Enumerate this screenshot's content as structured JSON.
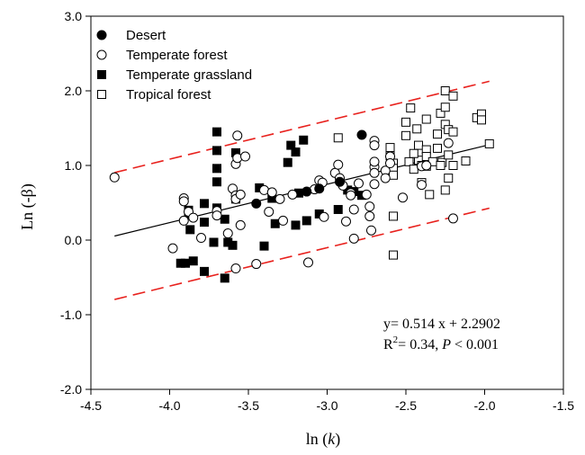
{
  "chart_data": {
    "type": "scatter",
    "xlabel": "ln (k)",
    "ylabel": "Ln (-β)",
    "xlim": [
      -4.5,
      -1.5
    ],
    "ylim": [
      -2.0,
      3.0
    ],
    "x_ticks": [
      "-4.5",
      "-4.0",
      "-3.5",
      "-3.0",
      "-2.5",
      "-2.0",
      "-1.5"
    ],
    "y_ticks": [
      "-2.0",
      "-1.0",
      "0.0",
      "1.0",
      "2.0",
      "3.0"
    ],
    "grid": false,
    "legend_position": "top-left",
    "annotation": {
      "equation": "y= 0.514 x + 2.2902",
      "r2_prefix": "R",
      "r2_sup": "2",
      "r2_value": "= 0.34, ",
      "p_label": "P",
      "p_value": " < 0.001"
    },
    "fit_line": {
      "slope": 0.514,
      "intercept": 2.2902,
      "x_range": [
        -4.35,
        -1.97
      ],
      "color": "#000000"
    },
    "prediction_band": {
      "offset": 0.85,
      "x_range": [
        -4.35,
        -1.97
      ],
      "color": "#e8211d"
    },
    "series": [
      {
        "name": "Desert",
        "marker": "circle-filled",
        "points": [
          [
            -3.45,
            0.49
          ],
          [
            -3.13,
            0.65
          ],
          [
            -2.78,
            1.41
          ],
          [
            -2.92,
            0.78
          ],
          [
            -3.05,
            0.69
          ]
        ]
      },
      {
        "name": "Temperate forest",
        "marker": "circle-open",
        "points": [
          [
            -4.35,
            0.84
          ],
          [
            -3.98,
            -0.11
          ],
          [
            -3.91,
            0.56
          ],
          [
            -3.91,
            0.52
          ],
          [
            -3.91,
            0.26
          ],
          [
            -3.88,
            0.38
          ],
          [
            -3.85,
            0.3
          ],
          [
            -3.8,
            0.03
          ],
          [
            -3.7,
            0.39
          ],
          [
            -3.7,
            0.33
          ],
          [
            -3.63,
            0.09
          ],
          [
            -3.6,
            0.69
          ],
          [
            -3.58,
            0.6
          ],
          [
            -3.58,
            0.55
          ],
          [
            -3.58,
            1.02
          ],
          [
            -3.57,
            1.4
          ],
          [
            -3.57,
            1.1
          ],
          [
            -3.55,
            0.61
          ],
          [
            -3.55,
            0.2
          ],
          [
            -3.52,
            1.12
          ],
          [
            -3.58,
            -0.38
          ],
          [
            -3.45,
            -0.32
          ],
          [
            -3.4,
            0.67
          ],
          [
            -3.37,
            0.38
          ],
          [
            -3.35,
            0.64
          ],
          [
            -3.3,
            0.55
          ],
          [
            -3.28,
            0.26
          ],
          [
            -3.22,
            0.61
          ],
          [
            -3.12,
            -0.3
          ],
          [
            -3.08,
            0.68
          ],
          [
            -3.05,
            0.8
          ],
          [
            -3.03,
            0.77
          ],
          [
            -3.02,
            0.31
          ],
          [
            -2.95,
            0.9
          ],
          [
            -2.93,
            1.01
          ],
          [
            -2.92,
            0.83
          ],
          [
            -2.9,
            0.73
          ],
          [
            -2.88,
            0.25
          ],
          [
            -2.85,
            0.63
          ],
          [
            -2.85,
            0.6
          ],
          [
            -2.83,
            0.41
          ],
          [
            -2.83,
            0.02
          ],
          [
            -2.8,
            0.76
          ],
          [
            -2.75,
            0.61
          ],
          [
            -2.73,
            0.45
          ],
          [
            -2.73,
            0.32
          ],
          [
            -2.72,
            0.13
          ],
          [
            -2.7,
            0.98
          ],
          [
            -2.7,
            1.05
          ],
          [
            -2.7,
            0.9
          ],
          [
            -2.7,
            0.75
          ],
          [
            -2.7,
            1.33
          ],
          [
            -2.7,
            1.27
          ],
          [
            -2.63,
            0.93
          ],
          [
            -2.63,
            0.83
          ],
          [
            -2.6,
            1.12
          ],
          [
            -2.6,
            1.03
          ],
          [
            -2.52,
            0.57
          ],
          [
            -2.4,
            0.74
          ],
          [
            -2.4,
            0.99
          ],
          [
            -2.37,
            1.0
          ],
          [
            -2.23,
            1.3
          ],
          [
            -2.2,
            0.29
          ]
        ]
      },
      {
        "name": "Temperate grassland",
        "marker": "square-filled",
        "points": [
          [
            -3.93,
            -0.31
          ],
          [
            -3.9,
            -0.31
          ],
          [
            -3.88,
            0.4
          ],
          [
            -3.88,
            0.34
          ],
          [
            -3.87,
            0.14
          ],
          [
            -3.85,
            -0.28
          ],
          [
            -3.78,
            0.24
          ],
          [
            -3.78,
            0.49
          ],
          [
            -3.78,
            -0.42
          ],
          [
            -3.72,
            -0.03
          ],
          [
            -3.7,
            1.45
          ],
          [
            -3.7,
            1.2
          ],
          [
            -3.7,
            0.96
          ],
          [
            -3.7,
            0.78
          ],
          [
            -3.7,
            0.43
          ],
          [
            -3.65,
            0.28
          ],
          [
            -3.65,
            -0.51
          ],
          [
            -3.63,
            -0.03
          ],
          [
            -3.6,
            -0.07
          ],
          [
            -3.58,
            1.17
          ],
          [
            -3.58,
            0.55
          ],
          [
            -3.43,
            0.7
          ],
          [
            -3.4,
            -0.08
          ],
          [
            -3.35,
            0.56
          ],
          [
            -3.33,
            0.22
          ],
          [
            -3.25,
            1.04
          ],
          [
            -3.23,
            1.27
          ],
          [
            -3.2,
            1.18
          ],
          [
            -3.2,
            0.2
          ],
          [
            -3.18,
            0.63
          ],
          [
            -3.15,
            1.34
          ],
          [
            -3.13,
            0.26
          ],
          [
            -3.05,
            0.35
          ],
          [
            -2.93,
            0.41
          ],
          [
            -2.87,
            0.67
          ],
          [
            -2.83,
            0.65
          ],
          [
            -2.78,
            0.6
          ]
        ]
      },
      {
        "name": "Tropical forest",
        "marker": "square-open",
        "points": [
          [
            -2.93,
            1.37
          ],
          [
            -2.6,
            1.24
          ],
          [
            -2.6,
            1.13
          ],
          [
            -2.58,
            1.03
          ],
          [
            -2.58,
            0.96
          ],
          [
            -2.58,
            0.87
          ],
          [
            -2.58,
            0.32
          ],
          [
            -2.58,
            -0.2
          ],
          [
            -2.5,
            1.58
          ],
          [
            -2.5,
            1.4
          ],
          [
            -2.48,
            1.05
          ],
          [
            -2.47,
            1.77
          ],
          [
            -2.43,
            1.49
          ],
          [
            -2.42,
            1.27
          ],
          [
            -2.42,
            1.07
          ],
          [
            -2.4,
            1.0
          ],
          [
            -2.4,
            0.77
          ],
          [
            -2.37,
            1.62
          ],
          [
            -2.37,
            1.21
          ],
          [
            -2.37,
            1.12
          ],
          [
            -2.37,
            0.99
          ],
          [
            -2.35,
            0.61
          ],
          [
            -2.33,
            1.05
          ],
          [
            -2.3,
            1.42
          ],
          [
            -2.3,
            1.23
          ],
          [
            -2.28,
            1.7
          ],
          [
            -2.27,
            1.04
          ],
          [
            -2.25,
            2.0
          ],
          [
            -2.25,
            1.78
          ],
          [
            -2.25,
            1.55
          ],
          [
            -2.25,
            0.67
          ],
          [
            -2.23,
            1.48
          ],
          [
            -2.23,
            1.14
          ],
          [
            -2.23,
            0.83
          ],
          [
            -2.2,
            1.93
          ],
          [
            -2.2,
            1.45
          ],
          [
            -2.2,
            1.0
          ],
          [
            -2.12,
            1.06
          ],
          [
            -2.05,
            1.64
          ],
          [
            -2.02,
            1.69
          ],
          [
            -2.02,
            1.61
          ],
          [
            -1.97,
            1.29
          ],
          [
            -2.28,
            1.0
          ],
          [
            -2.45,
            0.95
          ],
          [
            -2.45,
            1.16
          ]
        ]
      }
    ]
  }
}
